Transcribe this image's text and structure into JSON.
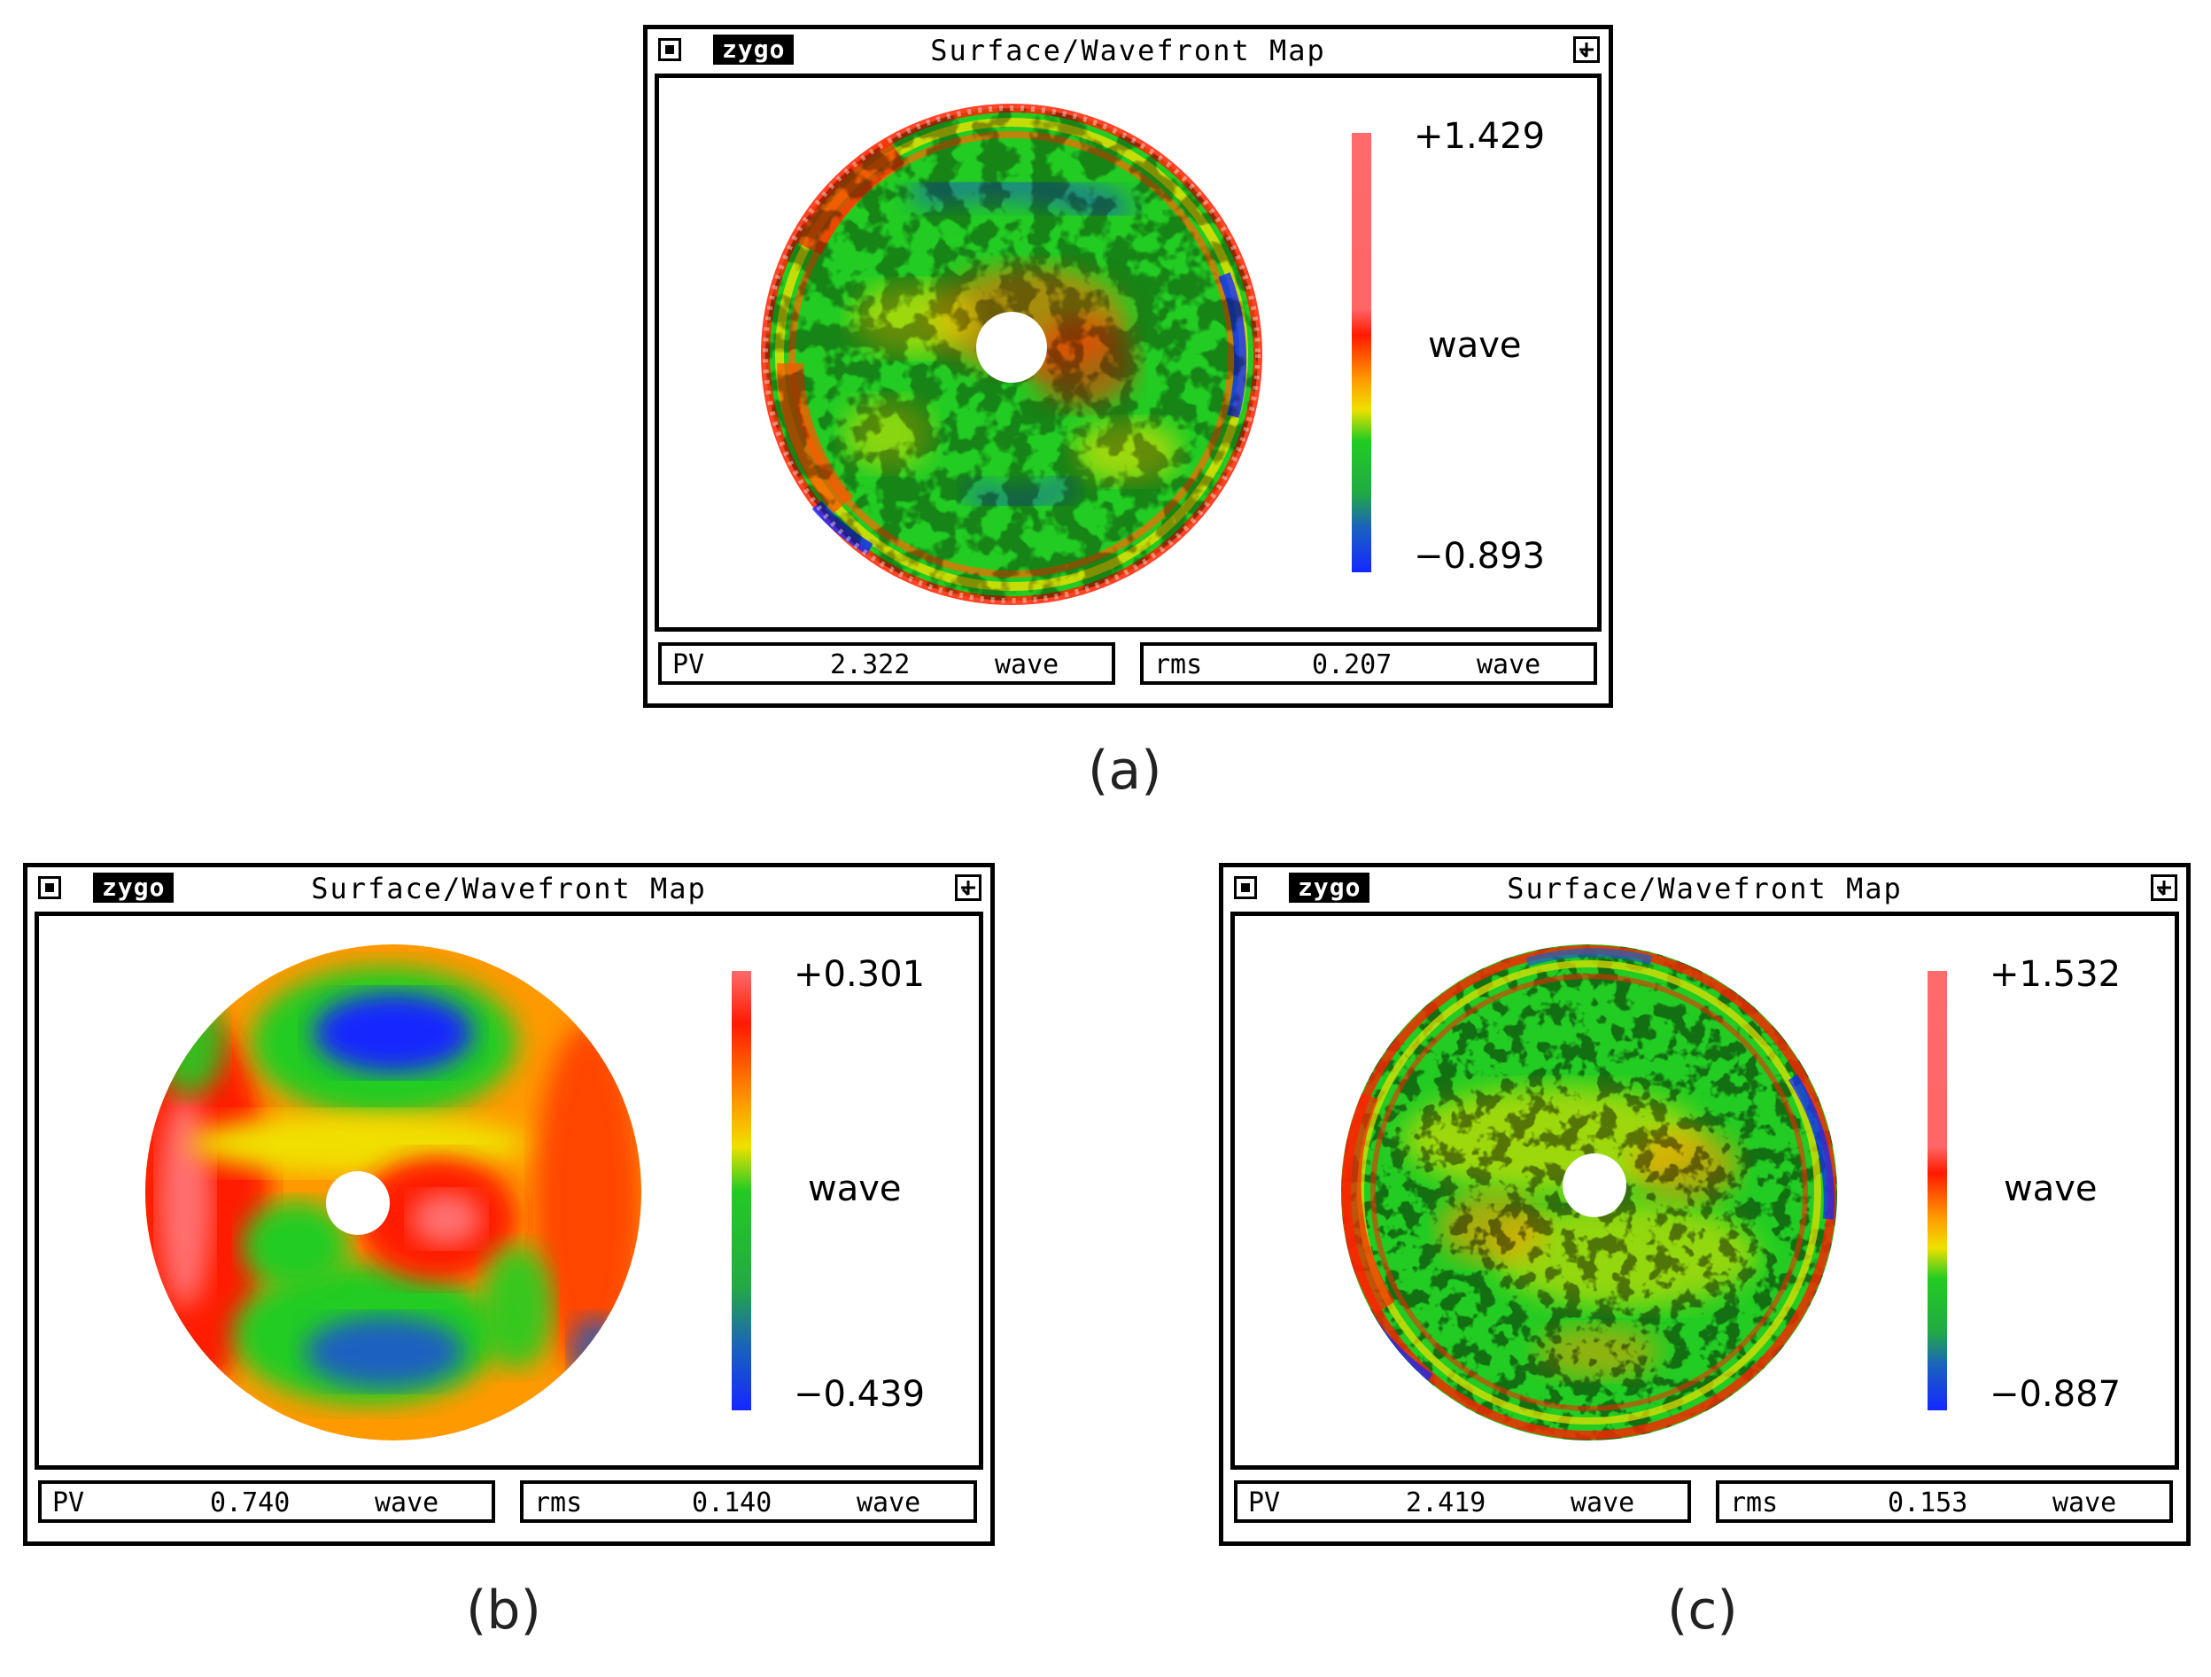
{
  "colors": {
    "high": "#ff6666",
    "red": "#ff1a00",
    "orange": "#ff9900",
    "yellow": "#f0e000",
    "green": "#22cc22",
    "blue": "#1428ff"
  },
  "panels": [
    {
      "caption": "(a)",
      "window": {
        "logo": "zygo",
        "title": "Surface/Wavefront Map"
      },
      "colorbar": {
        "max": "+1.429",
        "unit": "wave",
        "min": "−0.893"
      },
      "stats": {
        "pv_label": "PV",
        "pv_value": "2.322",
        "pv_unit": "wave",
        "rms_label": "rms",
        "rms_value": "0.207",
        "rms_unit": "wave"
      }
    },
    {
      "caption": "(b)",
      "window": {
        "logo": "zygo",
        "title": "Surface/Wavefront Map"
      },
      "colorbar": {
        "max": "+0.301",
        "unit": "wave",
        "min": "−0.439"
      },
      "stats": {
        "pv_label": "PV",
        "pv_value": "0.740",
        "pv_unit": "wave",
        "rms_label": "rms",
        "rms_value": "0.140",
        "rms_unit": "wave"
      }
    },
    {
      "caption": "(c)",
      "window": {
        "logo": "zygo",
        "title": "Surface/Wavefront Map"
      },
      "colorbar": {
        "max": "+1.532",
        "unit": "wave",
        "min": "−0.887"
      },
      "stats": {
        "pv_label": "PV",
        "pv_value": "2.419",
        "pv_unit": "wave",
        "rms_label": "rms",
        "rms_value": "0.153",
        "rms_unit": "wave"
      }
    }
  ]
}
